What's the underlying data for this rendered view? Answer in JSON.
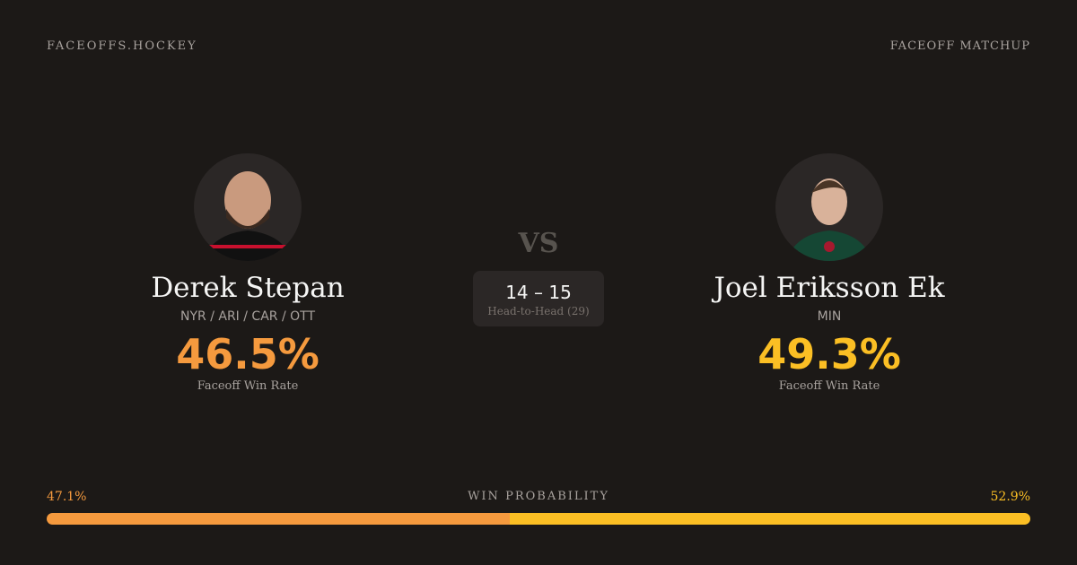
{
  "header": {
    "brand": "FACEOFFS.HOCKEY",
    "label": "FACEOFF MATCHUP"
  },
  "players": [
    {
      "name": "Derek Stepan",
      "teams": "NYR / ARI / CAR / OTT",
      "rate": "46.5%",
      "rate_label": "Faceoff Win Rate"
    },
    {
      "name": "Joel Eriksson Ek",
      "teams": "MIN",
      "rate": "49.3%",
      "rate_label": "Faceoff Win Rate"
    }
  ],
  "vs": "VS",
  "head_to_head": {
    "score": "14 – 15",
    "label": "Head-to-Head (29)"
  },
  "win_probability": {
    "label": "WIN PROBABILITY",
    "values": [
      47.1,
      52.9
    ],
    "value_labels": [
      "47.1%",
      "52.9%"
    ]
  }
}
